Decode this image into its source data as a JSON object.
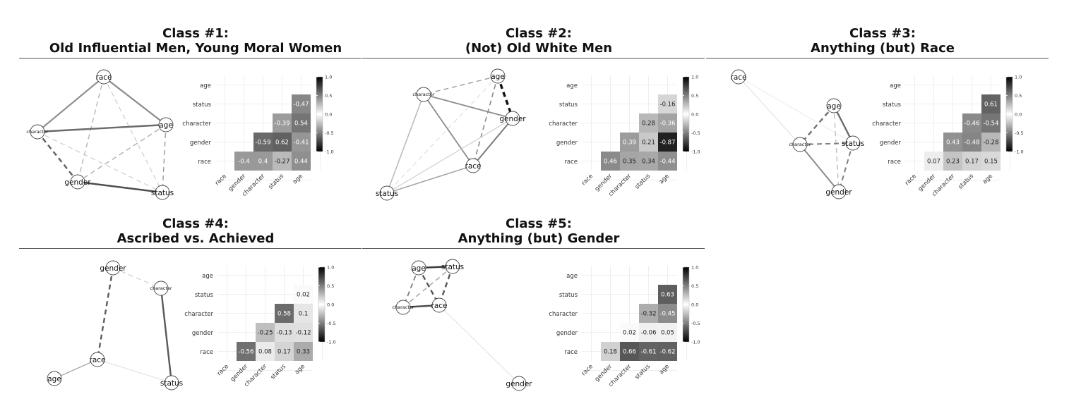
{
  "figure": {
    "variables": [
      "race",
      "gender",
      "character",
      "status",
      "age"
    ],
    "colorbar_ticks": [
      "1.0",
      "0.5",
      "0.0",
      "-0.5",
      "-1.0"
    ],
    "colors": {
      "negative": "#000000",
      "zero": "#ffffff",
      "positive": "#000000"
    }
  },
  "chart_data": [
    {
      "type": "heatmap",
      "title_line1": "Class #1:",
      "title_line2": "Old Influential Men, Young Moral Women",
      "variables": [
        "race",
        "gender",
        "character",
        "status",
        "age"
      ],
      "correlations": [
        [
          "gender",
          "race",
          -0.4
        ],
        [
          "character",
          "race",
          0.4
        ],
        [
          "character",
          "gender",
          -0.59
        ],
        [
          "status",
          "race",
          -0.27
        ],
        [
          "status",
          "gender",
          0.62
        ],
        [
          "status",
          "character",
          -0.39
        ],
        [
          "age",
          "race",
          0.44
        ],
        [
          "age",
          "gender",
          -0.41
        ],
        [
          "age",
          "character",
          0.54
        ],
        [
          "age",
          "status",
          -0.47
        ]
      ],
      "labels": [
        "-0.4",
        "0.4",
        "-0.59",
        "-0.27",
        "0.62",
        "-0.39",
        "0.44",
        "-0.41",
        "0.54",
        "-0.47"
      ],
      "colorbar_range": [
        -1,
        1
      ]
    },
    {
      "type": "heatmap",
      "title_line1": "Class #2:",
      "title_line2": "(Not) Old White Men",
      "variables": [
        "race",
        "gender",
        "character",
        "status",
        "age"
      ],
      "correlations": [
        [
          "gender",
          "race",
          0.46
        ],
        [
          "character",
          "race",
          0.35
        ],
        [
          "character",
          "gender",
          0.39
        ],
        [
          "status",
          "race",
          0.34
        ],
        [
          "status",
          "gender",
          0.21
        ],
        [
          "status",
          "character",
          0.28
        ],
        [
          "age",
          "race",
          -0.44
        ],
        [
          "age",
          "gender",
          -0.87
        ],
        [
          "age",
          "character",
          -0.36
        ],
        [
          "age",
          "status",
          -0.16
        ]
      ],
      "labels": [
        "0.46",
        "0.35",
        "0.39",
        "0.34",
        "0.21",
        "0.28",
        "-0.44",
        "-0.87",
        "-0.36",
        "-0.16"
      ],
      "colorbar_range": [
        -1,
        1
      ]
    },
    {
      "type": "heatmap",
      "title_line1": "Class #3:",
      "title_line2": "Anything (but) Race",
      "variables": [
        "race",
        "gender",
        "character",
        "status",
        "age"
      ],
      "correlations": [
        [
          "gender",
          "race",
          0.07
        ],
        [
          "character",
          "race",
          0.23
        ],
        [
          "character",
          "gender",
          0.43
        ],
        [
          "status",
          "race",
          0.17
        ],
        [
          "status",
          "gender",
          -0.48
        ],
        [
          "status",
          "character",
          -0.46
        ],
        [
          "age",
          "race",
          0.15
        ],
        [
          "age",
          "gender",
          -0.28
        ],
        [
          "age",
          "character",
          -0.54
        ],
        [
          "age",
          "status",
          0.61
        ]
      ],
      "labels": [
        "0.07",
        "0.23",
        "0.43",
        "0.17",
        "-0.48",
        "-0.46",
        "0.15",
        "-0.28",
        "-0.54",
        "0.61"
      ],
      "colorbar_range": [
        -1,
        1
      ]
    },
    {
      "type": "heatmap",
      "title_line1": "Class #4:",
      "title_line2": "Ascribed vs. Achieved",
      "variables": [
        "race",
        "gender",
        "character",
        "status",
        "age"
      ],
      "correlations": [
        [
          "gender",
          "race",
          -0.56
        ],
        [
          "character",
          "race",
          0.08
        ],
        [
          "character",
          "gender",
          -0.25
        ],
        [
          "status",
          "race",
          0.17
        ],
        [
          "status",
          "gender",
          -0.13
        ],
        [
          "status",
          "character",
          0.58
        ],
        [
          "age",
          "race",
          0.33
        ],
        [
          "age",
          "gender",
          -0.12
        ],
        [
          "age",
          "character",
          0.1
        ],
        [
          "age",
          "status",
          0.02
        ]
      ],
      "labels": [
        "-0.56",
        "0.08",
        "-0.25",
        "0.17",
        "-0.13",
        "0.58",
        "0.33",
        "-0.12",
        "0.1",
        "0.02"
      ],
      "colorbar_range": [
        -1,
        1
      ]
    },
    {
      "type": "heatmap",
      "title_line1": "Class #5:",
      "title_line2": "Anything (but) Gender",
      "variables": [
        "race",
        "gender",
        "character",
        "status",
        "age"
      ],
      "correlations": [
        [
          "gender",
          "race",
          0.18
        ],
        [
          "character",
          "race",
          0.66
        ],
        [
          "character",
          "gender",
          0.02
        ],
        [
          "status",
          "race",
          -0.61
        ],
        [
          "status",
          "gender",
          -0.06
        ],
        [
          "status",
          "character",
          -0.32
        ],
        [
          "age",
          "race",
          -0.62
        ],
        [
          "age",
          "gender",
          0.05
        ],
        [
          "age",
          "character",
          -0.45
        ],
        [
          "age",
          "status",
          0.63
        ]
      ],
      "labels": [
        "0.18",
        "0.66",
        "0.02",
        "-0.61",
        "-0.06",
        "-0.32",
        "-0.62",
        "0.05",
        "-0.45",
        "0.63"
      ],
      "colorbar_range": [
        -1,
        1
      ]
    }
  ]
}
